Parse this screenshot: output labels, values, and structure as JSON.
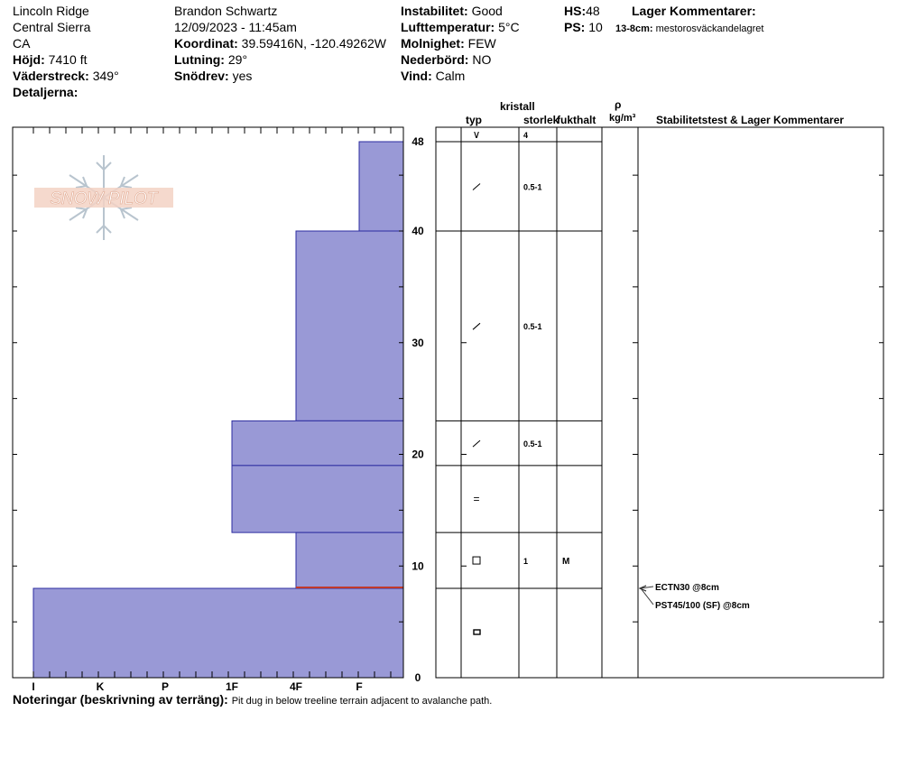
{
  "header": {
    "location_1": "Lincoln Ridge",
    "location_2": "Central Sierra",
    "location_3": "CA",
    "elevation_label": "Höjd:",
    "elevation_value": "7410 ft",
    "aspect_label": "Väderstreck:",
    "aspect_value": "349°",
    "details_label": "Detaljerna:",
    "observer": "Brandon Schwartz",
    "datetime": "12/09/2023 - 11:45am",
    "coord_label": "Koordinat:",
    "coord_value": "39.59416N, -120.49262W",
    "slope_label": "Lutning:",
    "slope_value": "29°",
    "wind_loading_label": "Snödrev:",
    "wind_loading_value": "yes",
    "stability_label": "Instabilitet:",
    "stability_value": "Good",
    "air_temp_label": "Lufttemperatur:",
    "air_temp_value": "5°C",
    "sky_label": "Molnighet:",
    "sky_value": "FEW",
    "precip_label": "Nederbörd:",
    "precip_value": "NO",
    "wind_label": "Vind:",
    "wind_value": "Calm",
    "hs_label": "HS:",
    "hs_value": "48",
    "ps_label": "PS:",
    "ps_value": "10",
    "layer_comments_title": "Lager Kommentarer:",
    "layer_comment_range": "13-8cm:",
    "layer_comment_text": "mestorosväckandelagret"
  },
  "logo_text": "SNOW PILOT",
  "table_headers": {
    "kristall": "kristall",
    "typ": "typ",
    "storlek": "storlek",
    "fukthalt": "fukthalt",
    "rho": "ρ",
    "density_unit": "kg/m³",
    "stability": "Stabilitetstest & Lager Kommentarer"
  },
  "colors": {
    "layer_fill": "#9999D6",
    "layer_stroke": "#2C2CA0",
    "weak_layer": "#C0392B"
  },
  "chart_data": {
    "type": "bar",
    "orientation": "horizontal",
    "description_axis_x": "hand hardness",
    "x_categories": [
      "I",
      "K",
      "P",
      "1F",
      "4F",
      "F"
    ],
    "y_ticks": [
      0,
      10,
      20,
      30,
      40,
      48
    ],
    "ylim": [
      0,
      48
    ],
    "layers": [
      {
        "top": 48,
        "bottom": 40,
        "hardness": "F"
      },
      {
        "top": 40,
        "bottom": 23,
        "hardness": "4F"
      },
      {
        "top": 23,
        "bottom": 19,
        "hardness": "1F"
      },
      {
        "top": 19,
        "bottom": 13,
        "hardness": "1F"
      },
      {
        "top": 13,
        "bottom": 8,
        "hardness": "4F"
      },
      {
        "top": 8,
        "bottom": 0,
        "hardness": "I"
      }
    ],
    "weak_layer_depth": 8,
    "crystal_rows": [
      {
        "top": 48,
        "bottom": 48,
        "type_symbol": "∨",
        "size": "4",
        "moisture": ""
      },
      {
        "top": 48,
        "bottom": 40,
        "type_symbol": "⁄",
        "size": "0.5-1",
        "moisture": ""
      },
      {
        "top": 40,
        "bottom": 23,
        "type_symbol": "⁄",
        "size": "0.5-1",
        "moisture": ""
      },
      {
        "top": 23,
        "bottom": 19,
        "type_symbol": "⁄",
        "size": "0.5-1",
        "moisture": ""
      },
      {
        "top": 19,
        "bottom": 13,
        "type_symbol": "=",
        "size": "",
        "moisture": ""
      },
      {
        "top": 13,
        "bottom": 8,
        "type_symbol": "□",
        "size": "1",
        "moisture": "M"
      },
      {
        "top": 8,
        "bottom": 0,
        "type_symbol": "▭",
        "size": "",
        "moisture": ""
      }
    ],
    "stability_tests": [
      {
        "label": "ECTN30 @8cm",
        "depth": 8
      },
      {
        "label": "PST45/100 (SF) @8cm",
        "depth": 8
      }
    ]
  },
  "notes": {
    "label": "Noteringar (beskrivning av terräng):",
    "text": "Pit dug in below treeline terrain adjacent to avalanche path."
  }
}
